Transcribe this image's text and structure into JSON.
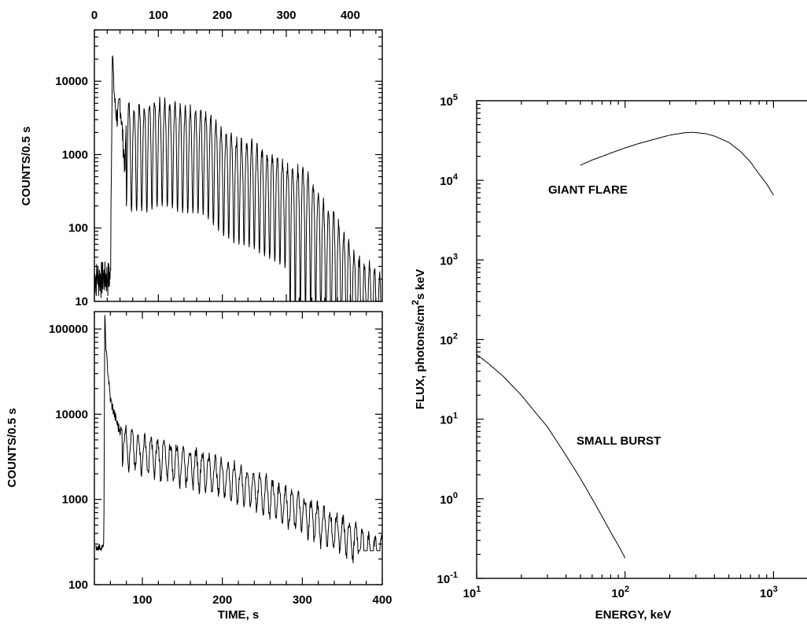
{
  "chart_data": [
    {
      "panel": "top-left",
      "type": "line",
      "xlabel": "",
      "ylabel": "COUNTS/0.5 s",
      "xlim": [
        0,
        450
      ],
      "ylim": [
        10,
        50000
      ],
      "yscale": "log",
      "x_ticks_top": [
        "0",
        "100",
        "200",
        "300",
        "400"
      ],
      "y_ticks": [
        "10",
        "100",
        "1000",
        "10000"
      ],
      "series": [
        {
          "description": "pulsating light curve (peak ~40000 at ~28 s, 8 s oscillations, decaying to background by ~400 s)",
          "x": [
            0,
            8,
            16,
            24,
            27,
            28,
            30,
            33,
            36,
            40,
            48,
            50,
            60,
            70,
            80,
            90,
            100,
            110,
            120,
            130,
            140,
            150,
            160,
            170,
            180,
            190,
            200,
            210,
            220,
            230,
            240,
            250,
            260,
            270,
            280,
            290,
            300,
            310,
            320,
            330,
            340,
            350,
            360,
            370,
            380,
            390,
            400,
            410,
            420,
            430,
            440,
            450
          ],
          "y": [
            20,
            15,
            25,
            12,
            2000,
            40000,
            12000,
            5000,
            4000,
            7000,
            800,
            5000,
            4000,
            4500,
            4000,
            4500,
            5000,
            5000,
            4800,
            4200,
            4000,
            4000,
            4000,
            3800,
            3200,
            2500,
            2000,
            1800,
            1500,
            1500,
            1400,
            1300,
            1100,
            1000,
            900,
            800,
            700,
            700,
            600,
            600,
            400,
            300,
            200,
            160,
            130,
            80,
            60,
            40,
            35,
            30,
            25,
            20
          ]
        }
      ]
    },
    {
      "panel": "bottom-left",
      "type": "line",
      "xlabel": "TIME, s",
      "ylabel": "COUNTS/0.5 s",
      "xlim": [
        40,
        400
      ],
      "ylim": [
        100,
        160000
      ],
      "yscale": "log",
      "x_ticks": [
        "100",
        "200",
        "300",
        "400"
      ],
      "y_ticks": [
        "100",
        "1000",
        "10000",
        "100000"
      ],
      "series": [
        {
          "description": "pulsating light curve (peak ~140000 at ~53 s, background ~270)",
          "x": [
            45,
            50,
            52,
            53,
            55,
            60,
            65,
            70,
            80,
            90,
            100,
            120,
            140,
            160,
            180,
            200,
            220,
            240,
            260,
            280,
            300,
            320,
            340,
            360,
            380,
            400
          ],
          "y": [
            270,
            270,
            800,
            140000,
            50000,
            15000,
            10000,
            7000,
            5500,
            5000,
            4500,
            4000,
            3600,
            3200,
            2800,
            2400,
            2000,
            1700,
            1400,
            1100,
            900,
            700,
            550,
            450,
            320,
            280
          ]
        }
      ]
    },
    {
      "panel": "right",
      "type": "line",
      "xlabel": "ENERGY, keV",
      "ylabel": "FLUX, photons/cm²s keV",
      "xscale": "log",
      "yscale": "log",
      "xlim": [
        10,
        1900
      ],
      "ylim": [
        0.1,
        100000
      ],
      "x_ticks": [
        {
          "base": "10",
          "exp": "1"
        },
        {
          "base": "10",
          "exp": "2"
        },
        {
          "base": "10",
          "exp": "3"
        }
      ],
      "y_ticks": [
        {
          "base": "10",
          "exp": "-1"
        },
        {
          "base": "10",
          "exp": "0"
        },
        {
          "base": "10",
          "exp": "1"
        },
        {
          "base": "10",
          "exp": "2"
        },
        {
          "base": "10",
          "exp": "3"
        },
        {
          "base": "10",
          "exp": "4"
        },
        {
          "base": "10",
          "exp": "5"
        }
      ],
      "series": [
        {
          "name": "GIANT FLARE",
          "x": [
            50,
            60,
            70,
            80,
            100,
            120,
            150,
            200,
            250,
            280,
            300,
            350,
            400,
            500,
            600,
            700,
            800,
            900,
            1000
          ],
          "y": [
            15500,
            18000,
            20000,
            22000,
            25500,
            28500,
            32000,
            37000,
            39500,
            40000,
            39800,
            38500,
            36000,
            30000,
            23000,
            17000,
            12000,
            9000,
            6500
          ]
        },
        {
          "name": "SMALL BURST",
          "x": [
            10,
            12,
            15,
            20,
            25,
            30,
            40,
            50,
            60,
            70,
            80,
            90,
            100
          ],
          "y": [
            65,
            50,
            35,
            20,
            12,
            8,
            3.5,
            1.8,
            1.0,
            0.6,
            0.38,
            0.26,
            0.18
          ]
        }
      ]
    }
  ],
  "annotations": {
    "giant_flare": "GIANT FLARE",
    "small_burst": "SMALL BURST"
  }
}
